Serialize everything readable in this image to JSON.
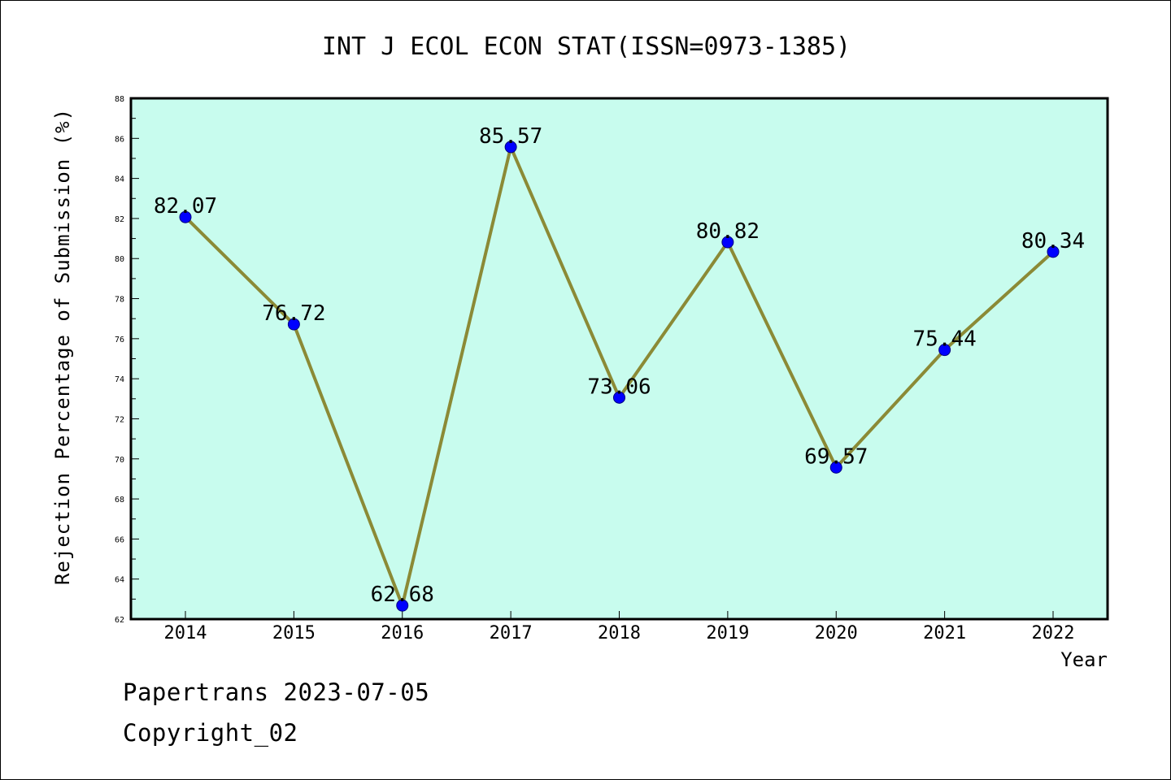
{
  "chart_data": {
    "type": "line",
    "title": "INT J ECOL ECON STAT(ISSN=0973-1385)",
    "xlabel": "Year",
    "ylabel": "Rejection Percentage of Submission (%)",
    "categories": [
      "2014",
      "2015",
      "2016",
      "2017",
      "2018",
      "2019",
      "2020",
      "2021",
      "2022"
    ],
    "values": [
      82.07,
      76.72,
      62.68,
      85.57,
      73.06,
      80.82,
      69.57,
      75.44,
      80.34
    ],
    "data_labels": [
      "82.07",
      "76.72",
      "62.68",
      "85.57",
      "73.06",
      "80.82",
      "69.57",
      "75.44",
      "80.34"
    ],
    "ylim": [
      62,
      88
    ],
    "yticks": [
      62,
      64,
      66,
      68,
      70,
      72,
      74,
      76,
      78,
      80,
      82,
      84,
      86,
      88
    ],
    "yticks_minor_step": 1,
    "grid": false,
    "colors": {
      "plot_background": "#c8fcee",
      "line": "#8b8a36",
      "marker": "#0000ff",
      "marker_edge": "#000080"
    }
  },
  "footer": {
    "line1": "Papertrans 2023-07-05",
    "line2": "Copyright_02"
  }
}
